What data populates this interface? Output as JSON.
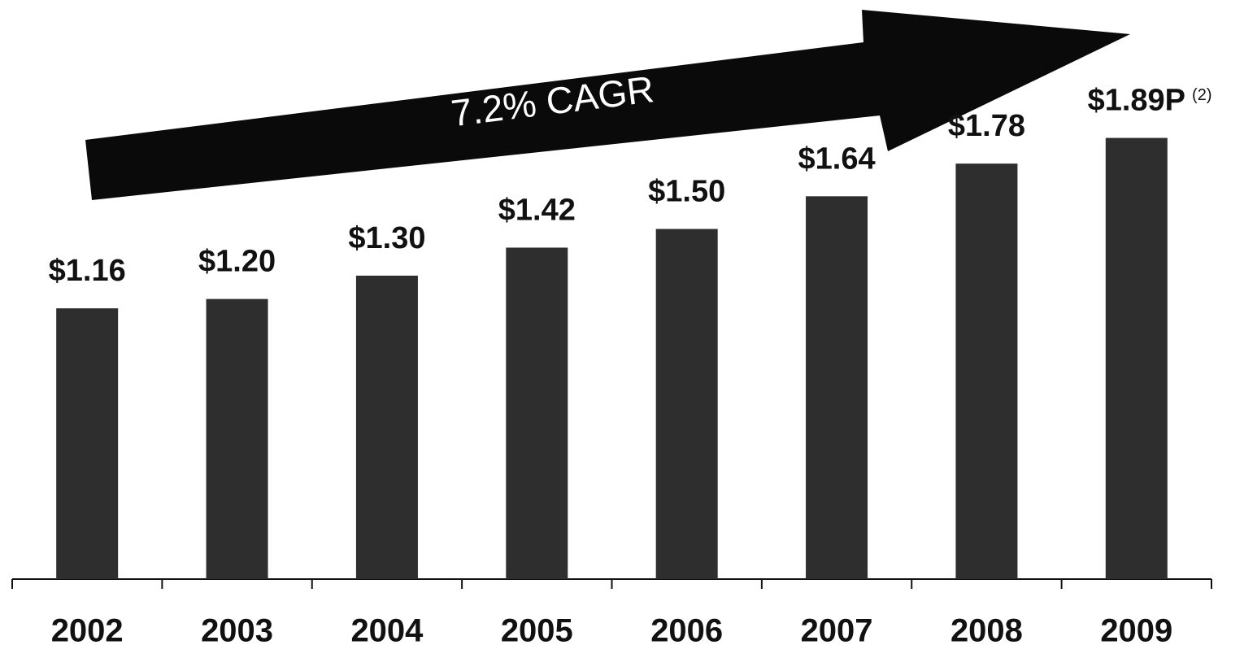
{
  "chart_data": {
    "type": "bar",
    "categories": [
      "2002",
      "2003",
      "2004",
      "2005",
      "2006",
      "2007",
      "2008",
      "2009"
    ],
    "values": [
      1.16,
      1.2,
      1.3,
      1.42,
      1.5,
      1.64,
      1.78,
      1.89
    ],
    "value_labels": [
      "$1.16",
      "$1.20",
      "$1.30",
      "$1.42",
      "$1.50",
      "$1.64",
      "$1.78",
      "$1.89P"
    ],
    "footnote": "(2)",
    "annotation": "7.2% CAGR",
    "color": "#2e2e2e",
    "ylim": [
      0,
      2
    ]
  }
}
